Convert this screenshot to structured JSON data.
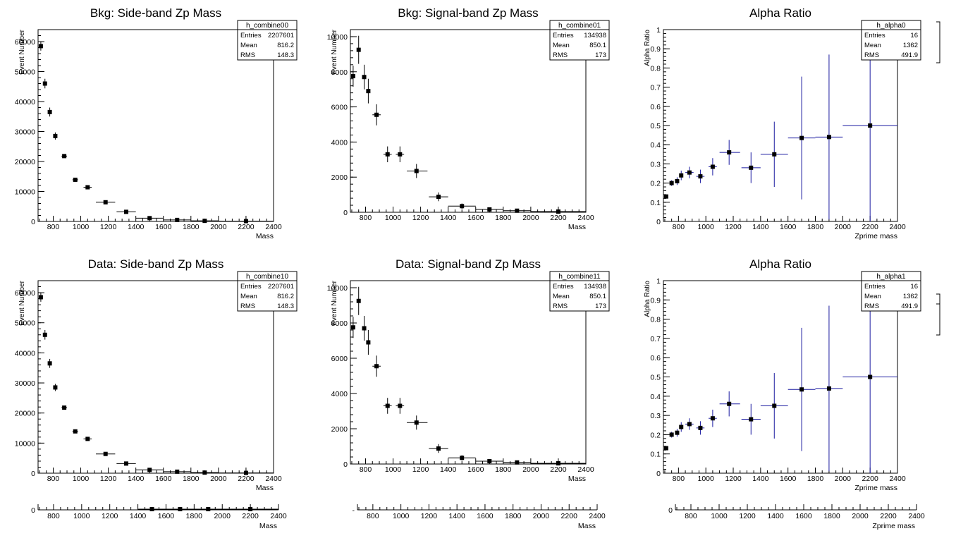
{
  "chart_data": [
    {
      "id": "p00",
      "type": "scatter",
      "title": "Bkg: Side-band Zp Mass",
      "xlabel": "Mass",
      "ylabel": "Event Number",
      "xlim": [
        690,
        2400
      ],
      "ylim": [
        0,
        64000
      ],
      "xticks": [
        800,
        1000,
        1200,
        1400,
        1600,
        1800,
        2000,
        2200,
        2400
      ],
      "yticks": [
        0,
        10000,
        20000,
        30000,
        40000,
        50000,
        60000
      ],
      "color": "#000000",
      "grid": false,
      "stats": {
        "name": "h_combine00",
        "rows": [
          [
            "Entries",
            "2207601"
          ],
          [
            "Mean",
            "816.2"
          ],
          [
            "RMS",
            "148.3"
          ]
        ]
      },
      "points": [
        {
          "x": 710,
          "y": 58500,
          "xlo": 700,
          "xhi": 720,
          "err": 1500
        },
        {
          "x": 740,
          "y": 46000,
          "xlo": 730,
          "xhi": 750,
          "err": 1600
        },
        {
          "x": 775,
          "y": 36500,
          "xlo": 765,
          "xhi": 785,
          "err": 1500
        },
        {
          "x": 815,
          "y": 28500,
          "xlo": 805,
          "xhi": 825,
          "err": 1200
        },
        {
          "x": 880,
          "y": 21800,
          "xlo": 860,
          "xhi": 900,
          "err": 600
        },
        {
          "x": 960,
          "y": 13900,
          "xlo": 940,
          "xhi": 980,
          "err": 500
        },
        {
          "x": 1050,
          "y": 11400,
          "xlo": 1020,
          "xhi": 1080,
          "err": 400
        },
        {
          "x": 1180,
          "y": 6400,
          "xlo": 1110,
          "xhi": 1250,
          "err": 300
        },
        {
          "x": 1330,
          "y": 3200,
          "xlo": 1260,
          "xhi": 1400,
          "err": 200
        },
        {
          "x": 1500,
          "y": 1100,
          "xlo": 1400,
          "xhi": 1600,
          "err": 500
        },
        {
          "x": 1700,
          "y": 500,
          "xlo": 1600,
          "xhi": 1800,
          "err": 400
        },
        {
          "x": 1900,
          "y": 200,
          "xlo": 1800,
          "xhi": 2000,
          "err": 300
        },
        {
          "x": 2200,
          "y": 100,
          "xlo": 2000,
          "xhi": 2400,
          "err": 1000
        }
      ]
    },
    {
      "id": "p01",
      "type": "scatter",
      "title": "Bkg: Signal-band Zp Mass",
      "xlabel": "Mass",
      "ylabel": "Event Number",
      "xlim": [
        690,
        2400
      ],
      "ylim": [
        0,
        10400
      ],
      "xticks": [
        800,
        1000,
        1200,
        1400,
        1600,
        1800,
        2000,
        2200,
        2400
      ],
      "yticks": [
        0,
        2000,
        4000,
        6000,
        8000,
        10000
      ],
      "color": "#000000",
      "grid": false,
      "stats": {
        "name": "h_combine01",
        "rows": [
          [
            "Entries",
            "134938"
          ],
          [
            "Mean",
            "850.1"
          ],
          [
            "RMS",
            "173"
          ]
        ]
      },
      "points": [
        {
          "x": 710,
          "y": 7750,
          "xlo": 700,
          "xhi": 720,
          "err": 600
        },
        {
          "x": 750,
          "y": 9250,
          "xlo": 740,
          "xhi": 760,
          "err": 800
        },
        {
          "x": 790,
          "y": 7700,
          "xlo": 780,
          "xhi": 800,
          "err": 700
        },
        {
          "x": 820,
          "y": 6900,
          "xlo": 810,
          "xhi": 830,
          "err": 700
        },
        {
          "x": 880,
          "y": 5550,
          "xlo": 850,
          "xhi": 910,
          "err": 600
        },
        {
          "x": 960,
          "y": 3300,
          "xlo": 930,
          "xhi": 990,
          "err": 450
        },
        {
          "x": 1050,
          "y": 3300,
          "xlo": 1020,
          "xhi": 1080,
          "err": 450
        },
        {
          "x": 1170,
          "y": 2350,
          "xlo": 1100,
          "xhi": 1250,
          "err": 400
        },
        {
          "x": 1330,
          "y": 880,
          "xlo": 1260,
          "xhi": 1400,
          "err": 250
        },
        {
          "x": 1500,
          "y": 350,
          "xlo": 1400,
          "xhi": 1600,
          "err": 150
        },
        {
          "x": 1700,
          "y": 160,
          "xlo": 1600,
          "xhi": 1800,
          "err": 80
        },
        {
          "x": 1900,
          "y": 90,
          "xlo": 1800,
          "xhi": 2000,
          "err": 60
        },
        {
          "x": 2200,
          "y": 40,
          "xlo": 2000,
          "xhi": 2400,
          "err": 40
        }
      ]
    },
    {
      "id": "p02",
      "type": "scatter",
      "title": "Alpha Ratio",
      "xlabel": "Zprime mass",
      "ylabel": "Alpha Ratio",
      "xlim": [
        690,
        2400
      ],
      "ylim": [
        0,
        1
      ],
      "xticks": [
        800,
        1000,
        1200,
        1400,
        1600,
        1800,
        2000,
        2200,
        2400
      ],
      "yticks": [
        0,
        0.1,
        0.2,
        0.3,
        0.4,
        0.5,
        0.6,
        0.7,
        0.8,
        0.9,
        1
      ],
      "color": "#1a1aa0",
      "grid": false,
      "stats": {
        "name": "h_alpha0",
        "rows": [
          [
            "Entries",
            "16"
          ],
          [
            "Mean",
            "1362"
          ],
          [
            "RMS",
            "491.9"
          ]
        ]
      },
      "points": [
        {
          "x": 710,
          "y": 0.13,
          "xlo": 700,
          "xhi": 720,
          "err": 0.01
        },
        {
          "x": 750,
          "y": 0.2,
          "xlo": 740,
          "xhi": 760,
          "err": 0.015
        },
        {
          "x": 790,
          "y": 0.21,
          "xlo": 780,
          "xhi": 800,
          "err": 0.02
        },
        {
          "x": 820,
          "y": 0.24,
          "xlo": 810,
          "xhi": 830,
          "err": 0.025
        },
        {
          "x": 880,
          "y": 0.255,
          "xlo": 850,
          "xhi": 910,
          "err": 0.03
        },
        {
          "x": 960,
          "y": 0.235,
          "xlo": 930,
          "xhi": 990,
          "err": 0.035
        },
        {
          "x": 1050,
          "y": 0.285,
          "xlo": 1020,
          "xhi": 1080,
          "err": 0.045
        },
        {
          "x": 1170,
          "y": 0.36,
          "xlo": 1100,
          "xhi": 1250,
          "err": 0.065
        },
        {
          "x": 1330,
          "y": 0.28,
          "xlo": 1260,
          "xhi": 1400,
          "err": 0.08
        },
        {
          "x": 1500,
          "y": 0.35,
          "xlo": 1400,
          "xhi": 1600,
          "err": 0.17
        },
        {
          "x": 1700,
          "y": 0.435,
          "xlo": 1600,
          "xhi": 1800,
          "err": 0.32
        },
        {
          "x": 1900,
          "y": 0.44,
          "xlo": 1800,
          "xhi": 2000,
          "err": 0.43
        },
        {
          "x": 2200,
          "y": 0.5,
          "xlo": 2000,
          "xhi": 2400,
          "err": 0.5
        }
      ]
    },
    {
      "id": "p10",
      "type": "scatter",
      "title": "Data: Side-band Zp Mass",
      "xlabel": "Mass",
      "ylabel": "Event Number",
      "xlim": [
        690,
        2400
      ],
      "ylim": [
        0,
        64000
      ],
      "xticks": [
        800,
        1000,
        1200,
        1400,
        1600,
        1800,
        2000,
        2200,
        2400
      ],
      "yticks": [
        0,
        10000,
        20000,
        30000,
        40000,
        50000,
        60000
      ],
      "color": "#000000",
      "grid": false,
      "stats": {
        "name": "h_combine10",
        "rows": [
          [
            "Entries",
            "2207601"
          ],
          [
            "Mean",
            "816.2"
          ],
          [
            "RMS",
            "148.3"
          ]
        ]
      },
      "points": [
        {
          "x": 710,
          "y": 58500,
          "xlo": 700,
          "xhi": 720,
          "err": 1500
        },
        {
          "x": 740,
          "y": 46000,
          "xlo": 730,
          "xhi": 750,
          "err": 1600
        },
        {
          "x": 775,
          "y": 36500,
          "xlo": 765,
          "xhi": 785,
          "err": 1500
        },
        {
          "x": 815,
          "y": 28500,
          "xlo": 805,
          "xhi": 825,
          "err": 1200
        },
        {
          "x": 880,
          "y": 21800,
          "xlo": 860,
          "xhi": 900,
          "err": 600
        },
        {
          "x": 960,
          "y": 13900,
          "xlo": 940,
          "xhi": 980,
          "err": 500
        },
        {
          "x": 1050,
          "y": 11400,
          "xlo": 1020,
          "xhi": 1080,
          "err": 400
        },
        {
          "x": 1180,
          "y": 6400,
          "xlo": 1110,
          "xhi": 1250,
          "err": 300
        },
        {
          "x": 1330,
          "y": 3200,
          "xlo": 1260,
          "xhi": 1400,
          "err": 200
        },
        {
          "x": 1500,
          "y": 1100,
          "xlo": 1400,
          "xhi": 1600,
          "err": 500
        },
        {
          "x": 1700,
          "y": 500,
          "xlo": 1600,
          "xhi": 1800,
          "err": 400
        },
        {
          "x": 1900,
          "y": 200,
          "xlo": 1800,
          "xhi": 2000,
          "err": 300
        },
        {
          "x": 2200,
          "y": 100,
          "xlo": 2000,
          "xhi": 2400,
          "err": 1000
        }
      ]
    },
    {
      "id": "p11",
      "type": "scatter",
      "title": "Data: Signal-band Zp Mass",
      "xlabel": "Mass",
      "ylabel": "Event Number",
      "xlim": [
        690,
        2400
      ],
      "ylim": [
        0,
        10400
      ],
      "xticks": [
        800,
        1000,
        1200,
        1400,
        1600,
        1800,
        2000,
        2200,
        2400
      ],
      "yticks": [
        0,
        2000,
        4000,
        6000,
        8000,
        10000
      ],
      "color": "#000000",
      "grid": false,
      "stats": {
        "name": "h_combine11",
        "rows": [
          [
            "Entries",
            "134938"
          ],
          [
            "Mean",
            "850.1"
          ],
          [
            "RMS",
            "173"
          ]
        ]
      },
      "points": [
        {
          "x": 710,
          "y": 7750,
          "xlo": 700,
          "xhi": 720,
          "err": 600
        },
        {
          "x": 750,
          "y": 9250,
          "xlo": 740,
          "xhi": 760,
          "err": 800
        },
        {
          "x": 790,
          "y": 7700,
          "xlo": 780,
          "xhi": 800,
          "err": 700
        },
        {
          "x": 820,
          "y": 6900,
          "xlo": 810,
          "xhi": 830,
          "err": 700
        },
        {
          "x": 880,
          "y": 5550,
          "xlo": 850,
          "xhi": 910,
          "err": 600
        },
        {
          "x": 960,
          "y": 3300,
          "xlo": 930,
          "xhi": 990,
          "err": 450
        },
        {
          "x": 1050,
          "y": 3300,
          "xlo": 1020,
          "xhi": 1080,
          "err": 450
        },
        {
          "x": 1170,
          "y": 2350,
          "xlo": 1100,
          "xhi": 1250,
          "err": 400
        },
        {
          "x": 1330,
          "y": 880,
          "xlo": 1260,
          "xhi": 1400,
          "err": 250
        },
        {
          "x": 1500,
          "y": 350,
          "xlo": 1400,
          "xhi": 1600,
          "err": 150
        },
        {
          "x": 1700,
          "y": 160,
          "xlo": 1600,
          "xhi": 1800,
          "err": 80
        },
        {
          "x": 1900,
          "y": 90,
          "xlo": 1800,
          "xhi": 2000,
          "err": 60
        },
        {
          "x": 2200,
          "y": 40,
          "xlo": 2000,
          "xhi": 2400,
          "err": 40
        }
      ]
    },
    {
      "id": "p12",
      "type": "scatter",
      "title": "Alpha Ratio",
      "xlabel": "Zprime mass",
      "ylabel": "Alpha Ratio",
      "xlim": [
        690,
        2400
      ],
      "ylim": [
        0,
        1
      ],
      "xticks": [
        800,
        1000,
        1200,
        1400,
        1600,
        1800,
        2000,
        2200,
        2400
      ],
      "yticks": [
        0,
        0.1,
        0.2,
        0.3,
        0.4,
        0.5,
        0.6,
        0.7,
        0.8,
        0.9,
        1
      ],
      "color": "#1a1aa0",
      "grid": false,
      "stats": {
        "name": "h_alpha1",
        "rows": [
          [
            "Entries",
            "16"
          ],
          [
            "Mean",
            "1362"
          ],
          [
            "RMS",
            "491.9"
          ]
        ]
      },
      "points": [
        {
          "x": 710,
          "y": 0.13,
          "xlo": 700,
          "xhi": 720,
          "err": 0.01
        },
        {
          "x": 750,
          "y": 0.2,
          "xlo": 740,
          "xhi": 760,
          "err": 0.015
        },
        {
          "x": 790,
          "y": 0.21,
          "xlo": 780,
          "xhi": 800,
          "err": 0.02
        },
        {
          "x": 820,
          "y": 0.24,
          "xlo": 810,
          "xhi": 830,
          "err": 0.025
        },
        {
          "x": 880,
          "y": 0.255,
          "xlo": 850,
          "xhi": 910,
          "err": 0.03
        },
        {
          "x": 960,
          "y": 0.235,
          "xlo": 930,
          "xhi": 990,
          "err": 0.035
        },
        {
          "x": 1050,
          "y": 0.285,
          "xlo": 1020,
          "xhi": 1080,
          "err": 0.045
        },
        {
          "x": 1170,
          "y": 0.36,
          "xlo": 1100,
          "xhi": 1250,
          "err": 0.065
        },
        {
          "x": 1330,
          "y": 0.28,
          "xlo": 1260,
          "xhi": 1400,
          "err": 0.08
        },
        {
          "x": 1500,
          "y": 0.35,
          "xlo": 1400,
          "xhi": 1600,
          "err": 0.17
        },
        {
          "x": 1700,
          "y": 0.435,
          "xlo": 1600,
          "xhi": 1800,
          "err": 0.32
        },
        {
          "x": 1900,
          "y": 0.44,
          "xlo": 1800,
          "xhi": 2000,
          "err": 0.43
        },
        {
          "x": 2200,
          "y": 0.5,
          "xlo": 2000,
          "xhi": 2400,
          "err": 0.5
        }
      ]
    }
  ],
  "bottom_strip": [
    {
      "xlabel": "Mass",
      "xlim": [
        690,
        2400
      ],
      "xticks": [
        800,
        1000,
        1200,
        1400,
        1600,
        1800,
        2000,
        2200,
        2400
      ],
      "ytick": "0",
      "segments": [
        {
          "x": 1500,
          "xlo": 1400,
          "xhi": 1600
        },
        {
          "x": 1700,
          "xlo": 1600,
          "xhi": 1800
        },
        {
          "x": 1900,
          "xlo": 1800,
          "xhi": 2000
        },
        {
          "x": 2200,
          "xlo": 2000,
          "xhi": 2400
        }
      ]
    },
    {
      "xlabel": "Mass",
      "xlim": [
        690,
        2400
      ],
      "xticks": [
        800,
        1000,
        1200,
        1400,
        1600,
        1800,
        2000,
        2200,
        2400
      ],
      "ytick": "-",
      "segments": []
    },
    {
      "xlabel": "Zprime mass",
      "xlim": [
        690,
        2400
      ],
      "xticks": [
        800,
        1000,
        1200,
        1400,
        1600,
        1800,
        2000,
        2200,
        2400
      ],
      "ytick": "0",
      "segments": []
    }
  ]
}
